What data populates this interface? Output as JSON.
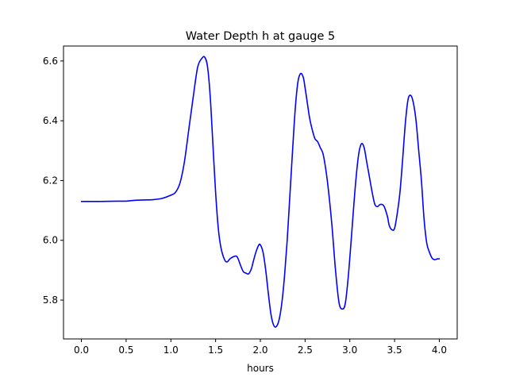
{
  "chart_data": {
    "type": "line",
    "title": "Water Depth h at gauge 5",
    "xlabel": "hours",
    "ylabel": "",
    "xlim": [
      -0.2,
      4.2
    ],
    "ylim": [
      5.67,
      6.65
    ],
    "xticks": [
      0.0,
      0.5,
      1.0,
      1.5,
      2.0,
      2.5,
      3.0,
      3.5,
      4.0
    ],
    "xtick_labels": [
      "0.0",
      "0.5",
      "1.0",
      "1.5",
      "2.0",
      "2.5",
      "3.0",
      "3.5",
      "4.0"
    ],
    "yticks": [
      5.8,
      6.0,
      6.2,
      6.4,
      6.6
    ],
    "ytick_labels": [
      "5.8",
      "6.0",
      "6.2",
      "6.4",
      "6.6"
    ],
    "grid": false,
    "legend": "none",
    "series": [
      {
        "color": "#0000ff",
        "x": [
          0.0,
          0.2,
          0.4,
          0.5,
          0.6,
          0.7,
          0.8,
          0.9,
          1.0,
          1.05,
          1.1,
          1.15,
          1.2,
          1.25,
          1.3,
          1.35,
          1.38,
          1.41,
          1.44,
          1.47,
          1.5,
          1.53,
          1.56,
          1.6,
          1.63,
          1.66,
          1.7,
          1.74,
          1.78,
          1.81,
          1.84,
          1.87,
          1.9,
          1.92,
          1.95,
          1.98,
          2.0,
          2.03,
          2.06,
          2.09,
          2.12,
          2.15,
          2.18,
          2.21,
          2.24,
          2.27,
          2.3,
          2.33,
          2.36,
          2.39,
          2.42,
          2.45,
          2.48,
          2.5,
          2.52,
          2.55,
          2.58,
          2.61,
          2.64,
          2.67,
          2.7,
          2.73,
          2.76,
          2.8,
          2.84,
          2.88,
          2.92,
          2.95,
          2.98,
          3.01,
          3.04,
          3.07,
          3.1,
          3.13,
          3.16,
          3.19,
          3.22,
          3.25,
          3.28,
          3.31,
          3.34,
          3.38,
          3.42,
          3.44,
          3.47,
          3.5,
          3.53,
          3.56,
          3.59,
          3.62,
          3.65,
          3.68,
          3.71,
          3.74,
          3.77,
          3.8,
          3.83,
          3.86,
          3.89,
          3.92,
          3.95,
          3.98,
          4.0
        ],
        "y": [
          6.13,
          6.13,
          6.131,
          6.131,
          6.134,
          6.135,
          6.136,
          6.14,
          6.151,
          6.16,
          6.19,
          6.26,
          6.37,
          6.48,
          6.58,
          6.61,
          6.612,
          6.58,
          6.48,
          6.32,
          6.16,
          6.04,
          5.975,
          5.935,
          5.928,
          5.938,
          5.945,
          5.945,
          5.915,
          5.895,
          5.89,
          5.888,
          5.905,
          5.928,
          5.96,
          5.983,
          5.985,
          5.96,
          5.9,
          5.82,
          5.75,
          5.715,
          5.712,
          5.735,
          5.79,
          5.88,
          6.0,
          6.15,
          6.3,
          6.44,
          6.53,
          6.558,
          6.545,
          6.51,
          6.47,
          6.41,
          6.37,
          6.34,
          6.33,
          6.31,
          6.29,
          6.24,
          6.17,
          6.05,
          5.9,
          5.79,
          5.77,
          5.79,
          5.87,
          5.98,
          6.1,
          6.21,
          6.29,
          6.323,
          6.31,
          6.26,
          6.21,
          6.16,
          6.12,
          6.113,
          6.12,
          6.115,
          6.08,
          6.05,
          6.035,
          6.04,
          6.09,
          6.16,
          6.27,
          6.39,
          6.47,
          6.485,
          6.46,
          6.4,
          6.3,
          6.2,
          6.07,
          5.99,
          5.96,
          5.94,
          5.935,
          5.938,
          5.938
        ]
      }
    ]
  }
}
